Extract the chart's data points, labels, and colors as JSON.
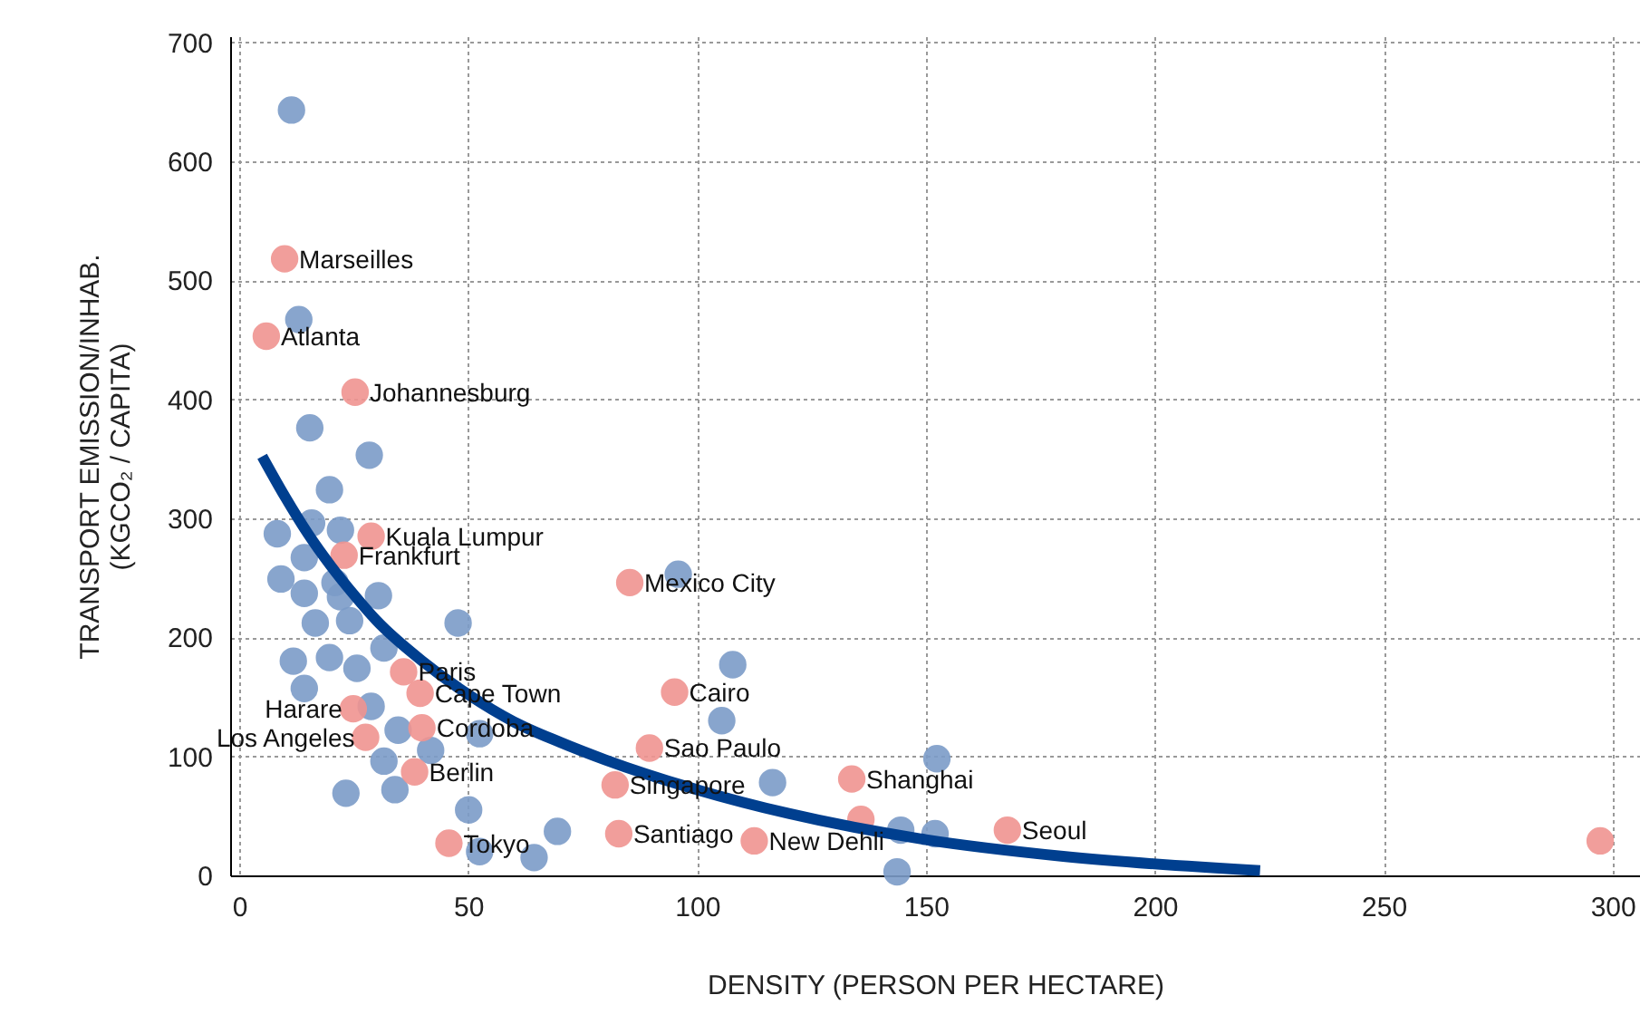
{
  "chart_data": {
    "type": "scatter",
    "xlabel": "DENSITY (PERSON PER HECTARE)",
    "ylabel": "TRANSPORT EMISSION/INHAB.\n(KGCO₂ / CAPITA)",
    "xlim": [
      -2,
      306
    ],
    "ylim": [
      0,
      705
    ],
    "xticks": [
      0,
      50,
      100,
      150,
      200,
      250,
      300
    ],
    "yticks": [
      0,
      100,
      200,
      300,
      400,
      500,
      600,
      700
    ],
    "grid": true,
    "marker": "circle",
    "series": [
      {
        "color": "#7b9bc8",
        "x": [
          11.4,
          13.0,
          15.4,
          28.4,
          19.7,
          8.3,
          15.8,
          22.1,
          14.2,
          9.1,
          14.2,
          20.9,
          22.1,
          30.4,
          16.6,
          24.1,
          47.8,
          31.6,
          11.8,
          19.7,
          25.7,
          14.2,
          28.8,
          34.7,
          41.8,
          31.6,
          23.3,
          34.0,
          50.1,
          69.5,
          52.5,
          64.4,
          52.5,
          95.9,
          107.8,
          105.4,
          116.5,
          144.5,
          152,
          143.7,
          152.4
        ],
        "values": [
          643,
          467,
          376,
          353,
          324,
          287,
          296,
          290,
          267,
          249,
          237,
          246,
          234,
          235,
          212,
          214,
          212,
          191,
          180,
          183,
          174,
          157,
          142,
          122,
          105,
          96,
          69,
          72,
          55,
          37,
          20,
          15,
          119,
          253,
          177,
          130,
          78,
          38,
          35,
          3,
          98
        ]
      },
      {
        "color": "#f09490",
        "x": [
          9.9,
          5.9,
          25.3,
          28.8,
          22.9,
          35.9,
          39.5,
          24.9,
          27.6,
          39.9,
          38.3,
          45.8,
          85.3,
          95.1,
          89.6,
          82.1,
          82.9,
          112.5,
          133.8,
          135.8,
          167.8,
          297.3
        ],
        "values": [
          518,
          453,
          406,
          285,
          269,
          171,
          153,
          140,
          116,
          124,
          87,
          27,
          246,
          154,
          107,
          76,
          35,
          29,
          81,
          47,
          38,
          29
        ]
      },
      {
        "type": "line",
        "marker": "none",
        "color": "#003f8f",
        "x": [
          5,
          10,
          15,
          20,
          25,
          30,
          40,
          50,
          60,
          70,
          80,
          100,
          120,
          150,
          180,
          223
        ],
        "values": [
          352,
          318,
          287,
          260,
          236,
          214,
          180,
          152,
          129,
          112,
          97,
          72,
          52,
          30,
          16,
          4
        ]
      }
    ],
    "annotations": [
      {
        "text": "Marseilles",
        "x": 9.9,
        "y": 518
      },
      {
        "text": "Atlanta",
        "x": 5.9,
        "y": 453
      },
      {
        "text": "Johannesburg",
        "x": 25.3,
        "y": 406
      },
      {
        "text": "Kuala Lumpur",
        "x": 28.8,
        "y": 285
      },
      {
        "text": "Frankfurt",
        "x": 22.9,
        "y": 269
      },
      {
        "text": "Paris",
        "x": 35.9,
        "y": 171
      },
      {
        "text": "Cape Town",
        "x": 39.5,
        "y": 153
      },
      {
        "text": "Harare",
        "x": 24.9,
        "y": 140
      },
      {
        "text": "Los Angeles",
        "x": 27.6,
        "y": 116
      },
      {
        "text": "Cordoba",
        "x": 39.9,
        "y": 124
      },
      {
        "text": "Berlin",
        "x": 38.3,
        "y": 87
      },
      {
        "text": "Tokyo",
        "x": 45.8,
        "y": 27
      },
      {
        "text": "Mexico City",
        "x": 85.3,
        "y": 246
      },
      {
        "text": "Cairo",
        "x": 95.1,
        "y": 154
      },
      {
        "text": "Sao Paulo",
        "x": 89.6,
        "y": 107
      },
      {
        "text": "Singapore",
        "x": 82.1,
        "y": 76
      },
      {
        "text": "Santiago",
        "x": 82.9,
        "y": 35
      },
      {
        "text": "New Dehli",
        "x": 112.5,
        "y": 29
      },
      {
        "text": "Shanghai",
        "x": 133.8,
        "y": 81
      },
      {
        "text": "Seoul",
        "x": 167.8,
        "y": 38
      }
    ]
  }
}
